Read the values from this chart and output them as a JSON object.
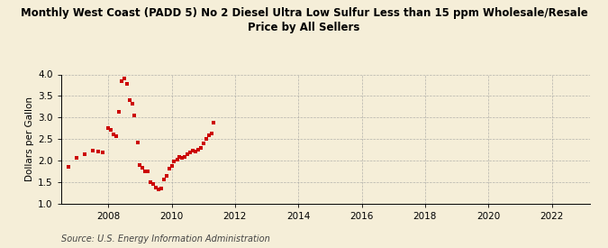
{
  "title": "Monthly West Coast (PADD 5) No 2 Diesel Ultra Low Sulfur Less than 15 ppm Wholesale/Resale\nPrice by All Sellers",
  "ylabel": "Dollars per Gallon",
  "source": "Source: U.S. Energy Information Administration",
  "background_color": "#f5eed8",
  "dot_color": "#cc0000",
  "xlim": [
    2006.5,
    2023.2
  ],
  "ylim": [
    1.0,
    4.0
  ],
  "xticks": [
    2008,
    2010,
    2012,
    2014,
    2016,
    2018,
    2020,
    2022
  ],
  "yticks": [
    1.0,
    1.5,
    2.0,
    2.5,
    3.0,
    3.5,
    4.0
  ],
  "data_x": [
    2006.75,
    2007.0,
    2007.25,
    2007.5,
    2007.67,
    2007.83,
    2008.0,
    2008.08,
    2008.17,
    2008.25,
    2008.33,
    2008.42,
    2008.5,
    2008.58,
    2008.67,
    2008.75,
    2008.83,
    2008.92,
    2009.0,
    2009.08,
    2009.17,
    2009.25,
    2009.33,
    2009.42,
    2009.5,
    2009.58,
    2009.67,
    2009.75,
    2009.83,
    2009.92,
    2010.0,
    2010.08,
    2010.17,
    2010.25,
    2010.33,
    2010.42,
    2010.5,
    2010.58,
    2010.67,
    2010.75,
    2010.83,
    2010.92,
    2011.0,
    2011.08,
    2011.17,
    2011.25,
    2011.33
  ],
  "data_y": [
    1.85,
    2.05,
    2.15,
    2.22,
    2.2,
    2.18,
    2.75,
    2.7,
    2.6,
    2.57,
    3.13,
    3.85,
    3.9,
    3.78,
    3.4,
    3.32,
    3.05,
    2.42,
    1.9,
    1.82,
    1.75,
    1.75,
    1.5,
    1.45,
    1.37,
    1.32,
    1.35,
    1.55,
    1.65,
    1.8,
    1.88,
    1.98,
    2.02,
    2.08,
    2.05,
    2.07,
    2.15,
    2.18,
    2.22,
    2.2,
    2.25,
    2.3,
    2.4,
    2.5,
    2.58,
    2.62,
    2.87
  ],
  "title_fontsize": 8.5,
  "tick_fontsize": 7.5,
  "ylabel_fontsize": 7.5,
  "source_fontsize": 7.0
}
